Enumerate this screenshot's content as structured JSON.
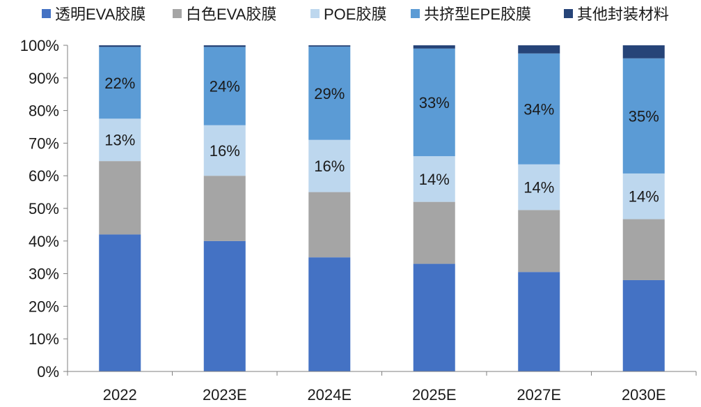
{
  "chart_data": {
    "type": "bar",
    "stacked": true,
    "categories": [
      "2022",
      "2023E",
      "2024E",
      "2025E",
      "2027E",
      "2030E"
    ],
    "series": [
      {
        "name": "透明EVA胶膜",
        "color": "#4472c4",
        "values": [
          42,
          40,
          35,
          33,
          30.5,
          28
        ]
      },
      {
        "name": "白色EVA胶膜",
        "color": "#a5a5a5",
        "values": [
          22.5,
          20,
          20,
          19,
          19,
          18.7
        ]
      },
      {
        "name": "POE胶膜",
        "color": "#bdd7ee",
        "values": [
          13,
          15.5,
          16,
          14,
          14,
          14
        ]
      },
      {
        "name": "共挤型EPE胶膜",
        "color": "#5b9bd5",
        "values": [
          22,
          24,
          28.6,
          33,
          34,
          35.3
        ]
      },
      {
        "name": "其他封装材料",
        "color": "#264478",
        "values": [
          0.5,
          0.5,
          0.4,
          1,
          2.5,
          4
        ]
      }
    ],
    "data_labels": [
      [
        "",
        "",
        "13%",
        "22%",
        ""
      ],
      [
        "",
        "",
        "16%",
        "24%",
        ""
      ],
      [
        "",
        "",
        "16%",
        "29%",
        ""
      ],
      [
        "",
        "",
        "14%",
        "33%",
        ""
      ],
      [
        "",
        "",
        "14%",
        "34%",
        ""
      ],
      [
        "",
        "",
        "14%",
        "35%",
        ""
      ]
    ],
    "ylim": [
      0,
      100
    ],
    "yticks": [
      "0%",
      "10%",
      "20%",
      "30%",
      "40%",
      "50%",
      "60%",
      "70%",
      "80%",
      "90%",
      "100%"
    ],
    "legend_position": "top",
    "grid": false
  }
}
